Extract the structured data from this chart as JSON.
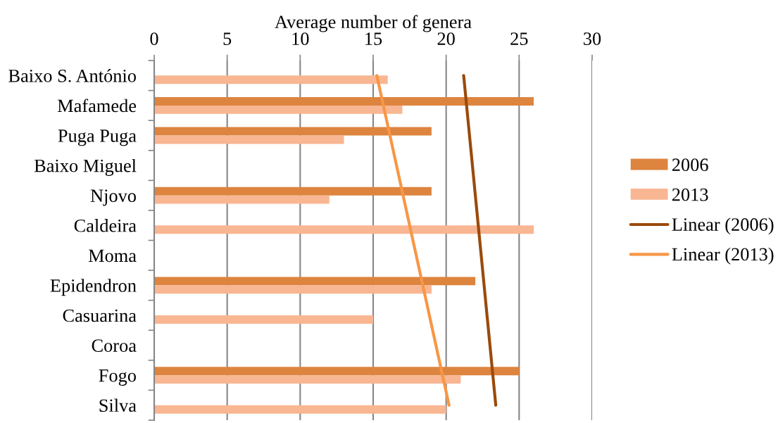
{
  "chart_data": {
    "type": "bar",
    "orientation": "horizontal",
    "xlabel": "Average number of genera",
    "categories": [
      "Baixo S. António",
      "Mafamede",
      "Puga Puga",
      "Baixo Miguel",
      "Njovo",
      "Caldeira",
      "Moma",
      "Epidendron",
      "Casuarina",
      "Coroa",
      "Fogo",
      "Silva"
    ],
    "series": [
      {
        "name": "2006",
        "color": "#dd843f",
        "values": [
          null,
          26,
          19,
          null,
          19,
          null,
          null,
          22,
          null,
          null,
          25,
          null
        ]
      },
      {
        "name": "2013",
        "color": "#f9b692",
        "values": [
          16,
          17,
          13,
          null,
          12,
          26,
          null,
          19,
          15,
          null,
          21,
          20
        ]
      },
      {
        "name": "Linear (2006)",
        "type": "line",
        "color": "#9a4a0b",
        "values": [
          21.2,
          21.4,
          21.6,
          21.8,
          22.0,
          22.2,
          22.4,
          22.6,
          22.8,
          23.0,
          23.2,
          23.4
        ]
      },
      {
        "name": "Linear (2013)",
        "type": "line",
        "color": "#f79646",
        "values": [
          15.25,
          15.7,
          16.15,
          16.6,
          17.05,
          17.5,
          17.95,
          18.4,
          18.85,
          19.3,
          19.75,
          20.2
        ]
      }
    ],
    "xlim": [
      0,
      30
    ],
    "xticks": [
      0,
      5,
      10,
      15,
      20,
      25,
      30
    ],
    "grid": "x",
    "legend": "right",
    "marker": "none",
    "line_style": "solid"
  }
}
